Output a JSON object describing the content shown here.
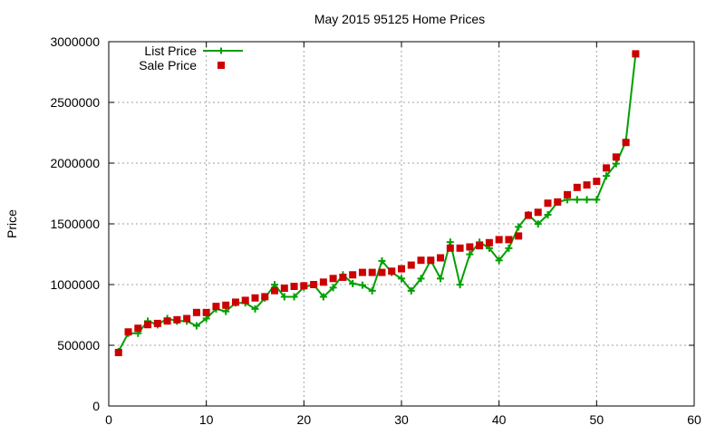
{
  "chart_data": {
    "type": "line",
    "title": "May 2015 95125 Home Prices",
    "xlabel": "",
    "ylabel": "Price",
    "xlim": [
      0,
      60
    ],
    "ylim": [
      0,
      3000000
    ],
    "xticks": [
      "0",
      "10",
      "20",
      "30",
      "40",
      "50",
      "60"
    ],
    "yticks": [
      "0",
      "500000",
      "1000000",
      "1500000",
      "2000000",
      "2500000",
      "3000000"
    ],
    "grid": true,
    "legend_position": "top-left",
    "series": [
      {
        "name": "List Price",
        "style": "line-plus",
        "color": "#00a000",
        "x": [
          1,
          2,
          3,
          4,
          5,
          6,
          7,
          8,
          9,
          10,
          11,
          12,
          13,
          14,
          15,
          16,
          17,
          18,
          19,
          20,
          21,
          22,
          23,
          24,
          25,
          26,
          27,
          28,
          29,
          30,
          31,
          32,
          33,
          34,
          35,
          36,
          37,
          38,
          39,
          40,
          41,
          42,
          43,
          44,
          45,
          46,
          47,
          48,
          49,
          50,
          51,
          52,
          53,
          54
        ],
        "values": [
          449000,
          599000,
          599000,
          699000,
          669000,
          720000,
          699000,
          699000,
          660000,
          720000,
          799000,
          779000,
          849000,
          849000,
          799000,
          889000,
          999000,
          899000,
          899000,
          979000,
          999000,
          899000,
          975000,
          1080000,
          1008000,
          995000,
          949000,
          1195000,
          1100000,
          1049000,
          949000,
          1049000,
          1199000,
          1049000,
          1350000,
          999000,
          1249000,
          1349000,
          1299000,
          1199000,
          1299000,
          1475000,
          1575000,
          1499000,
          1575000,
          1679000,
          1699000,
          1699000,
          1699000,
          1699000,
          1895000,
          1995000,
          2179000,
          2899000
        ]
      },
      {
        "name": "Sale Price",
        "style": "square-markers",
        "color": "#cc0000",
        "x": [
          1,
          2,
          3,
          4,
          5,
          6,
          7,
          8,
          9,
          10,
          11,
          12,
          13,
          14,
          15,
          16,
          17,
          18,
          19,
          20,
          21,
          22,
          23,
          24,
          25,
          26,
          27,
          28,
          29,
          30,
          31,
          32,
          33,
          34,
          35,
          36,
          37,
          38,
          39,
          40,
          41,
          42,
          43,
          44,
          45,
          46,
          47,
          48,
          49,
          50,
          51,
          52,
          53,
          54
        ],
        "values": [
          440000,
          610000,
          640000,
          670000,
          680000,
          700000,
          710000,
          720000,
          770000,
          770000,
          820000,
          830000,
          855000,
          870000,
          890000,
          900000,
          950000,
          970000,
          985000,
          990000,
          1000000,
          1020000,
          1050000,
          1060000,
          1080000,
          1100000,
          1100000,
          1100000,
          1110000,
          1130000,
          1160000,
          1200000,
          1200000,
          1220000,
          1300000,
          1300000,
          1310000,
          1320000,
          1345000,
          1370000,
          1370000,
          1400000,
          1570000,
          1595000,
          1670000,
          1680000,
          1740000,
          1800000,
          1820000,
          1850000,
          1960000,
          2050000,
          2170000,
          2900000
        ]
      }
    ]
  }
}
